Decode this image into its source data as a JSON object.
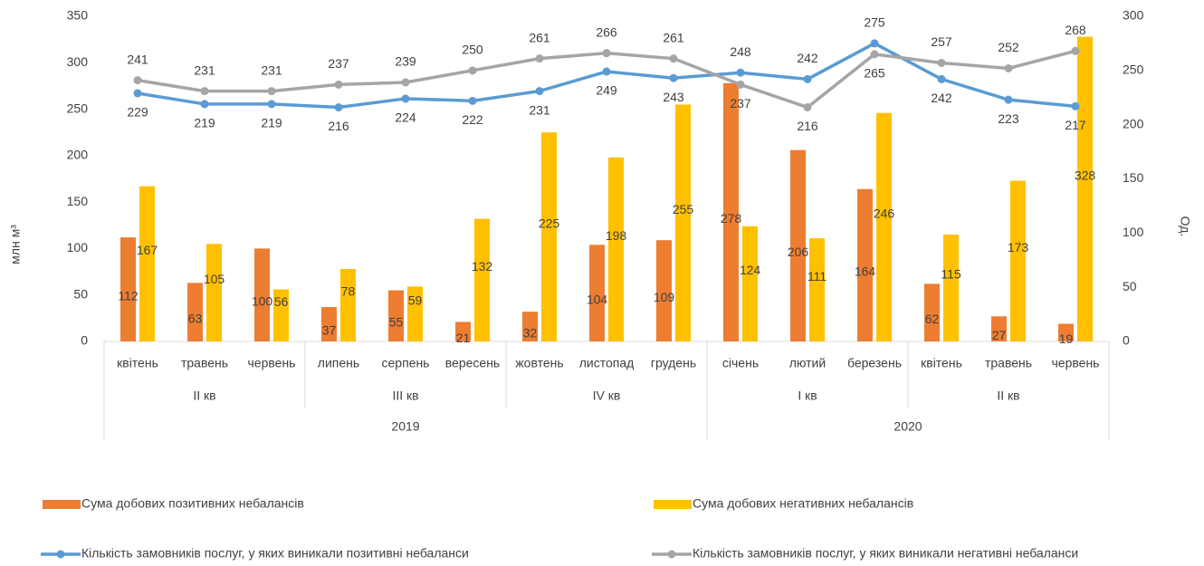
{
  "chart_data": {
    "type": "bar-line",
    "categories": [
      "квітень",
      "травень",
      "червень",
      "липень",
      "серпень",
      "вересень",
      "жовтень",
      "листопад",
      "грудень",
      "січень",
      "лютий",
      "березень",
      "квітень",
      "травень",
      "червень"
    ],
    "quarters": [
      "II кв",
      "II кв",
      "II кв",
      "III кв",
      "III кв",
      "III кв",
      "IV кв",
      "IV кв",
      "IV кв",
      "I кв",
      "I кв",
      "I кв",
      "II кв",
      "II кв",
      "II кв"
    ],
    "years": [
      "2019",
      "2019",
      "2019",
      "2019",
      "2019",
      "2019",
      "2019",
      "2019",
      "2019",
      "2020",
      "2020",
      "2020",
      "2020",
      "2020",
      "2020"
    ],
    "ylabel": "млн м³",
    "y2label": "Од.",
    "ylim": [
      0,
      350
    ],
    "yticks": [
      0,
      50,
      100,
      150,
      200,
      250,
      300,
      350
    ],
    "y2lim": [
      0,
      300
    ],
    "y2ticks": [
      0,
      50,
      100,
      150,
      200,
      250,
      300
    ],
    "series": [
      {
        "name": "Сума добових позитивних небалансів",
        "kind": "bar",
        "color": "#ed7d31",
        "values": [
          112,
          63,
          100,
          37,
          55,
          21,
          32,
          104,
          109,
          278,
          206,
          164,
          62,
          27,
          19
        ]
      },
      {
        "name": "Сума добових негативних небалансів",
        "kind": "bar",
        "color": "#ffc000",
        "values": [
          167,
          105,
          56,
          78,
          59,
          132,
          225,
          198,
          255,
          124,
          111,
          246,
          115,
          173,
          328
        ]
      },
      {
        "name": "Кількість замовників послуг, у яких виникали позитивні небаланси",
        "kind": "line",
        "axis": "y2",
        "color": "#5b9bd5",
        "values": [
          229,
          219,
          219,
          216,
          224,
          222,
          231,
          249,
          243,
          248,
          242,
          275,
          242,
          223,
          217
        ]
      },
      {
        "name": "Кількість замовників послуг, у яких виникали негативні небаланси",
        "kind": "line",
        "axis": "y2",
        "color": "#a5a5a5",
        "values": [
          241,
          231,
          231,
          237,
          239,
          250,
          261,
          266,
          261,
          237,
          216,
          265,
          257,
          252,
          268
        ]
      }
    ]
  }
}
